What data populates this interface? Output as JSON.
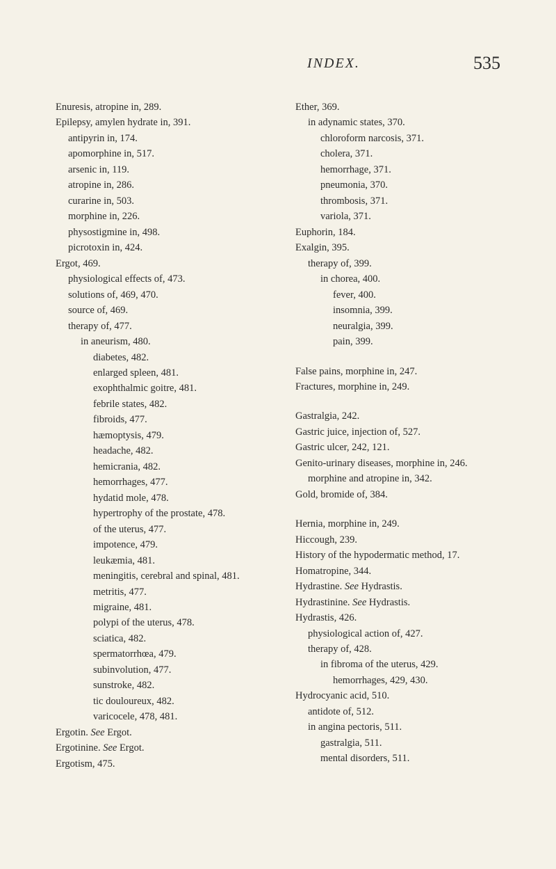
{
  "header": {
    "title": "INDEX.",
    "page_number": "535"
  },
  "left_column": [
    {
      "indent": 0,
      "text": "Enuresis, atropine in, 289."
    },
    {
      "indent": 0,
      "text": "Epilepsy, amylen hydrate in, 391."
    },
    {
      "indent": 1,
      "text": "antipyrin in, 174."
    },
    {
      "indent": 1,
      "text": "apomorphine in, 517."
    },
    {
      "indent": 1,
      "text": "arsenic in, 119."
    },
    {
      "indent": 1,
      "text": "atropine in, 286."
    },
    {
      "indent": 1,
      "text": "curarine in, 503."
    },
    {
      "indent": 1,
      "text": "morphine in, 226."
    },
    {
      "indent": 1,
      "text": "physostigmine in, 498."
    },
    {
      "indent": 1,
      "text": "picrotoxin in, 424."
    },
    {
      "indent": 0,
      "text": "Ergot, 469."
    },
    {
      "indent": 1,
      "text": "physiological effects of, 473."
    },
    {
      "indent": 1,
      "text": "solutions of, 469, 470."
    },
    {
      "indent": 1,
      "text": "source of, 469."
    },
    {
      "indent": 1,
      "text": "therapy of, 477."
    },
    {
      "indent": 2,
      "text": "in aneurism, 480."
    },
    {
      "indent": 3,
      "text": "diabetes, 482."
    },
    {
      "indent": 3,
      "text": "enlarged spleen, 481."
    },
    {
      "indent": 3,
      "text": "exophthalmic goitre, 481."
    },
    {
      "indent": 3,
      "text": "febrile states, 482."
    },
    {
      "indent": 3,
      "text": "fibroids, 477."
    },
    {
      "indent": 3,
      "text": "hæmoptysis, 479."
    },
    {
      "indent": 3,
      "text": "headache, 482."
    },
    {
      "indent": 3,
      "text": "hemicrania, 482."
    },
    {
      "indent": 3,
      "text": "hemorrhages, 477."
    },
    {
      "indent": 3,
      "text": "hydatid mole, 478."
    },
    {
      "indent": 3,
      "text": "hypertrophy of the prostate, 478."
    },
    {
      "indent": 3,
      "text": "of the uterus, 477."
    },
    {
      "indent": 3,
      "text": "impotence, 479."
    },
    {
      "indent": 3,
      "text": "leukæmia, 481."
    },
    {
      "indent": 3,
      "text": "meningitis, cerebral and spinal, 481."
    },
    {
      "indent": 3,
      "text": "metritis, 477."
    },
    {
      "indent": 3,
      "text": "migraine, 481."
    },
    {
      "indent": 3,
      "text": "polypi of the uterus, 478."
    },
    {
      "indent": 3,
      "text": "sciatica, 482."
    },
    {
      "indent": 3,
      "text": "spermatorrhœa, 479."
    },
    {
      "indent": 3,
      "text": "subinvolution, 477."
    },
    {
      "indent": 3,
      "text": "sunstroke, 482."
    },
    {
      "indent": 3,
      "text": "tic douloureux, 482."
    },
    {
      "indent": 3,
      "text": "varicocele, 478, 481."
    },
    {
      "indent": 0,
      "text": "Ergotin. See Ergot.",
      "see": true
    },
    {
      "indent": 0,
      "text": "Ergotinine. See Ergot.",
      "see": true
    },
    {
      "indent": 0,
      "text": "Ergotism, 475."
    }
  ],
  "right_column": [
    {
      "indent": 0,
      "text": "Ether, 369."
    },
    {
      "indent": 1,
      "text": "in adynamic states, 370."
    },
    {
      "indent": 2,
      "text": "chloroform narcosis, 371."
    },
    {
      "indent": 2,
      "text": "cholera, 371."
    },
    {
      "indent": 2,
      "text": "hemorrhage, 371."
    },
    {
      "indent": 2,
      "text": "pneumonia, 370."
    },
    {
      "indent": 2,
      "text": "thrombosis, 371."
    },
    {
      "indent": 2,
      "text": "variola, 371."
    },
    {
      "indent": 0,
      "text": "Euphorin, 184."
    },
    {
      "indent": 0,
      "text": "Exalgin, 395."
    },
    {
      "indent": 1,
      "text": "therapy of, 399."
    },
    {
      "indent": 2,
      "text": "in chorea, 400."
    },
    {
      "indent": 3,
      "text": "fever, 400."
    },
    {
      "indent": 3,
      "text": "insomnia, 399."
    },
    {
      "indent": 3,
      "text": "neuralgia, 399."
    },
    {
      "indent": 3,
      "text": "pain, 399."
    },
    {
      "spacer": true
    },
    {
      "indent": 0,
      "text": "False pains, morphine in, 247."
    },
    {
      "indent": 0,
      "text": "Fractures, morphine in, 249."
    },
    {
      "spacer": true
    },
    {
      "indent": 0,
      "text": "Gastralgia, 242."
    },
    {
      "indent": 0,
      "text": "Gastric juice, injection of, 527."
    },
    {
      "indent": 0,
      "text": "Gastric ulcer, 242, 121."
    },
    {
      "indent": 0,
      "text": "Genito-urinary diseases, morphine in, 246."
    },
    {
      "indent": 1,
      "text": "morphine and atropine in, 342."
    },
    {
      "indent": 0,
      "text": "Gold, bromide of, 384."
    },
    {
      "spacer": true
    },
    {
      "indent": 0,
      "text": "Hernia, morphine in, 249."
    },
    {
      "indent": 0,
      "text": "Hiccough, 239."
    },
    {
      "indent": 0,
      "text": "History of the hypodermatic method, 17."
    },
    {
      "indent": 0,
      "text": "Homatropine, 344."
    },
    {
      "indent": 0,
      "text": "Hydrastine. See Hydrastis.",
      "see": true
    },
    {
      "indent": 0,
      "text": "Hydrastinine. See Hydrastis.",
      "see": true
    },
    {
      "indent": 0,
      "text": "Hydrastis, 426."
    },
    {
      "indent": 1,
      "text": "physiological action of, 427."
    },
    {
      "indent": 1,
      "text": "therapy of, 428."
    },
    {
      "indent": 2,
      "text": "in fibroma of the uterus, 429."
    },
    {
      "indent": 3,
      "text": "hemorrhages, 429, 430."
    },
    {
      "indent": 0,
      "text": "Hydrocyanic acid, 510."
    },
    {
      "indent": 1,
      "text": "antidote of, 512."
    },
    {
      "indent": 1,
      "text": "in angina pectoris, 511."
    },
    {
      "indent": 2,
      "text": "gastralgia, 511."
    },
    {
      "indent": 2,
      "text": "mental disorders, 511."
    }
  ]
}
